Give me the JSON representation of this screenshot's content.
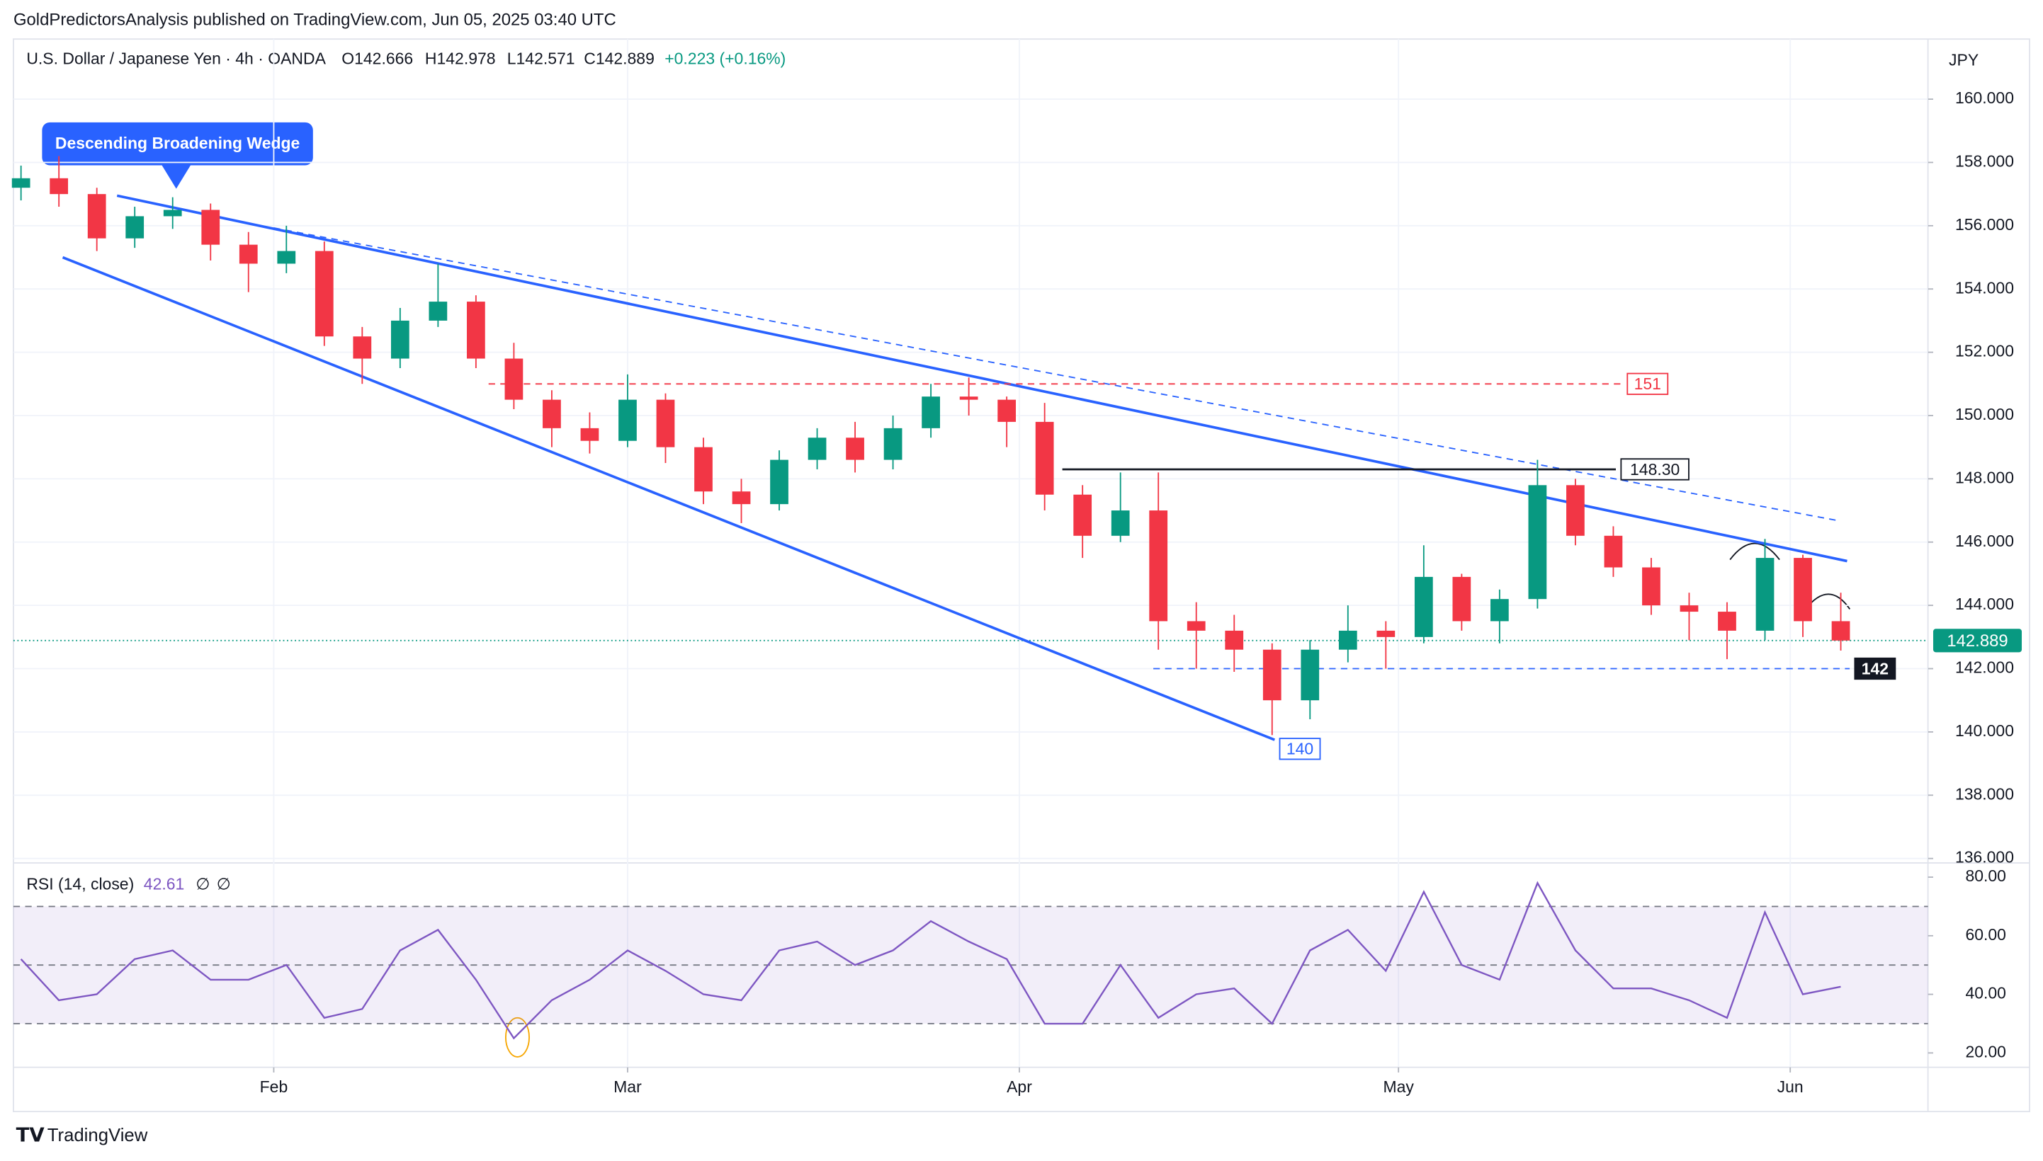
{
  "header": {
    "publisher": "GoldPredictorsAnalysis published on TradingView.com, Jun 05, 2025 03:40 UTC",
    "brand": "TradingView"
  },
  "chart_data": [
    {
      "type": "candlestick",
      "title": "U.S. Dollar / Japanese Yen · 4h · OANDA",
      "ohlc_text": [
        "O142.666",
        "H142.978",
        "L142.571",
        "C142.889",
        "+0.223 (+0.16%)"
      ],
      "currency": "JPY",
      "annotation": "Descending Broadening Wedge",
      "up_color": "#089981",
      "down_color": "#f23645",
      "x": [
        12,
        15,
        18,
        21,
        24,
        27,
        30,
        33,
        36,
        39,
        42,
        45,
        48,
        51,
        54,
        57,
        60,
        63,
        66,
        69,
        72,
        75,
        78,
        81,
        84,
        87,
        90,
        93,
        96,
        99,
        102,
        105,
        108,
        111,
        114,
        117,
        120,
        123,
        126,
        129,
        132,
        135,
        138,
        141,
        144,
        147,
        150,
        153,
        156
      ],
      "open": [
        157.2,
        157.5,
        157.0,
        155.6,
        156.3,
        156.5,
        155.4,
        154.8,
        155.2,
        152.5,
        151.8,
        153.0,
        153.6,
        151.8,
        150.5,
        149.6,
        149.2,
        150.5,
        149.0,
        147.6,
        147.2,
        148.6,
        149.3,
        148.6,
        149.6,
        150.6,
        150.5,
        149.8,
        147.5,
        146.2,
        147.0,
        143.5,
        143.2,
        142.6,
        141.0,
        142.6,
        143.2,
        143.0,
        144.9,
        143.5,
        144.2,
        147.8,
        146.2,
        145.2,
        144.0,
        143.8,
        143.2,
        145.5,
        143.5
      ],
      "high": [
        157.9,
        158.2,
        157.2,
        156.6,
        156.9,
        156.7,
        155.8,
        156.0,
        155.5,
        152.8,
        153.4,
        154.8,
        153.8,
        152.3,
        150.8,
        150.1,
        151.3,
        150.7,
        149.3,
        148.0,
        148.9,
        149.6,
        149.8,
        150.0,
        151.0,
        151.2,
        150.6,
        150.4,
        147.8,
        148.2,
        148.2,
        144.1,
        143.7,
        142.8,
        142.9,
        144.0,
        143.5,
        145.9,
        145.0,
        144.5,
        148.6,
        148.0,
        146.5,
        145.5,
        144.4,
        144.1,
        146.1,
        145.6,
        144.4
      ],
      "low": [
        156.8,
        156.6,
        155.2,
        155.3,
        155.9,
        154.9,
        153.9,
        154.5,
        152.2,
        151.0,
        151.5,
        152.8,
        151.5,
        150.2,
        149.0,
        148.8,
        149.0,
        148.5,
        147.2,
        146.6,
        147.0,
        148.3,
        148.2,
        148.3,
        149.3,
        150.0,
        149.0,
        147.0,
        145.5,
        146.0,
        142.6,
        142.0,
        141.9,
        139.9,
        140.4,
        142.2,
        142.0,
        142.8,
        143.2,
        142.8,
        143.9,
        145.9,
        144.9,
        143.7,
        142.9,
        142.3,
        142.9,
        143.0,
        142.571
      ],
      "close": [
        157.5,
        157.0,
        155.6,
        156.3,
        156.5,
        155.4,
        154.8,
        155.2,
        152.5,
        151.8,
        153.0,
        153.6,
        151.8,
        150.5,
        149.6,
        149.2,
        150.5,
        149.0,
        147.6,
        147.2,
        148.6,
        149.3,
        148.6,
        149.6,
        150.6,
        150.5,
        149.8,
        147.5,
        146.2,
        147.0,
        143.5,
        143.2,
        142.6,
        141.0,
        142.6,
        143.2,
        143.0,
        144.9,
        143.5,
        144.2,
        147.8,
        146.2,
        145.2,
        144.0,
        143.8,
        143.2,
        145.5,
        143.5,
        142.889
      ],
      "xlim": [
        11.4,
        162.9
      ],
      "xticks": [
        {
          "value": 32,
          "label": "Feb"
        },
        {
          "value": 60,
          "label": "Mar"
        },
        {
          "value": 91,
          "label": "Apr"
        },
        {
          "value": 121,
          "label": "May"
        },
        {
          "value": 152,
          "label": "Jun"
        }
      ],
      "ylim": [
        135.9,
        161.9
      ],
      "yticks": [
        {
          "value": 136,
          "label": "136.000"
        },
        {
          "value": 138,
          "label": "138.000"
        },
        {
          "value": 140,
          "label": "140.000"
        },
        {
          "value": 142,
          "label": "142.000"
        },
        {
          "value": 144,
          "label": "144.000"
        },
        {
          "value": 146,
          "label": "146.000"
        },
        {
          "value": 148,
          "label": "148.000"
        },
        {
          "value": 150,
          "label": "150.000"
        },
        {
          "value": 152,
          "label": "152.000"
        },
        {
          "value": 154,
          "label": "154.000"
        },
        {
          "value": 156,
          "label": "156.000"
        },
        {
          "value": 158,
          "label": "158.000"
        },
        {
          "value": 160,
          "label": "160.000"
        }
      ],
      "trendlines": [
        {
          "x": [
            19.6,
            156.5
          ],
          "y": [
            156.95,
            145.4
          ],
          "color": "#2962ff",
          "dashed": false
        },
        {
          "x": [
            15.3,
            111.2
          ],
          "y": [
            155.0,
            139.75
          ],
          "color": "#2962ff",
          "dashed": false
        },
        {
          "x": [
            32,
            155.9
          ],
          "y": [
            155.93,
            146.67
          ],
          "color": "#2962ff",
          "dashed": true
        }
      ],
      "levels": [
        {
          "value": 151,
          "label": "151",
          "from": 49,
          "to": 138.7,
          "color": "#f23645",
          "dashed": true,
          "filled": false
        },
        {
          "value": 148.3,
          "label": "148.30",
          "from": 94.4,
          "to": 138.2,
          "color": "#131722",
          "dashed": false,
          "filled": false
        },
        {
          "value": 142,
          "label": "142",
          "from": 101.6,
          "to": 156.7,
          "color": "#2962ff",
          "dashed": true,
          "filled": true
        },
        {
          "value": 140,
          "label": "140",
          "from": 113.2,
          "to": 113.2,
          "color": "#2962ff",
          "dashed": false,
          "filled": false
        }
      ],
      "last": {
        "value": 142.889,
        "label": "142.889"
      }
    },
    {
      "type": "line",
      "title": "RSI (14, close)",
      "value_text": "42.61",
      "flags": [
        "∅",
        "∅"
      ],
      "color": "#7e57c2",
      "x": [
        12,
        15,
        18,
        21,
        24,
        27,
        30,
        33,
        36,
        39,
        42,
        45,
        48,
        51,
        54,
        57,
        60,
        63,
        66,
        69,
        72,
        75,
        78,
        81,
        84,
        87,
        90,
        93,
        96,
        99,
        102,
        105,
        108,
        111,
        114,
        117,
        120,
        123,
        126,
        129,
        132,
        135,
        138,
        141,
        144,
        147,
        150,
        153,
        156
      ],
      "values": [
        52,
        38,
        40,
        52,
        55,
        45,
        45,
        50,
        32,
        35,
        55,
        62,
        45,
        25,
        38,
        45,
        55,
        48,
        40,
        38,
        55,
        58,
        50,
        55,
        65,
        58,
        52,
        30,
        30,
        50,
        32,
        40,
        42,
        30,
        55,
        62,
        48,
        75,
        50,
        45,
        78,
        55,
        42,
        42,
        38,
        32,
        68,
        40,
        42.61
      ],
      "ylim": [
        15.1,
        84.4
      ],
      "yticks": [
        {
          "value": 20,
          "label": "20.00"
        },
        {
          "value": 40,
          "label": "40.00"
        },
        {
          "value": 60,
          "label": "60.00"
        },
        {
          "value": 80,
          "label": "80.00"
        }
      ],
      "levels": [
        70,
        50,
        30
      ],
      "band": [
        30,
        70
      ]
    }
  ]
}
